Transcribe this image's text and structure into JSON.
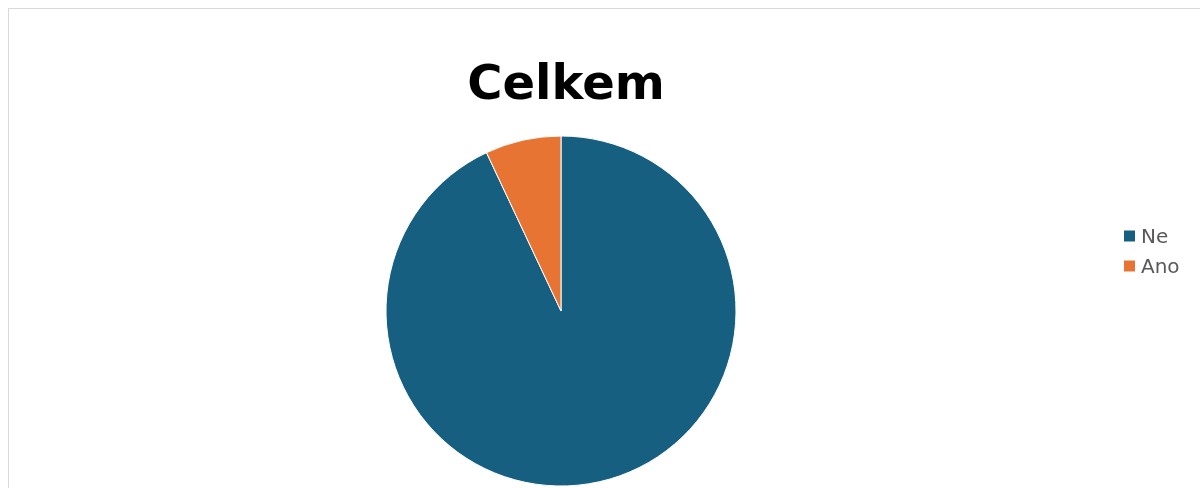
{
  "chart_data": {
    "type": "pie",
    "title": "Celkem",
    "categories": [
      "Ne",
      "Ano"
    ],
    "values": [
      93,
      7
    ],
    "colors": [
      "#175f80",
      "#e87433"
    ],
    "legend": "right"
  }
}
